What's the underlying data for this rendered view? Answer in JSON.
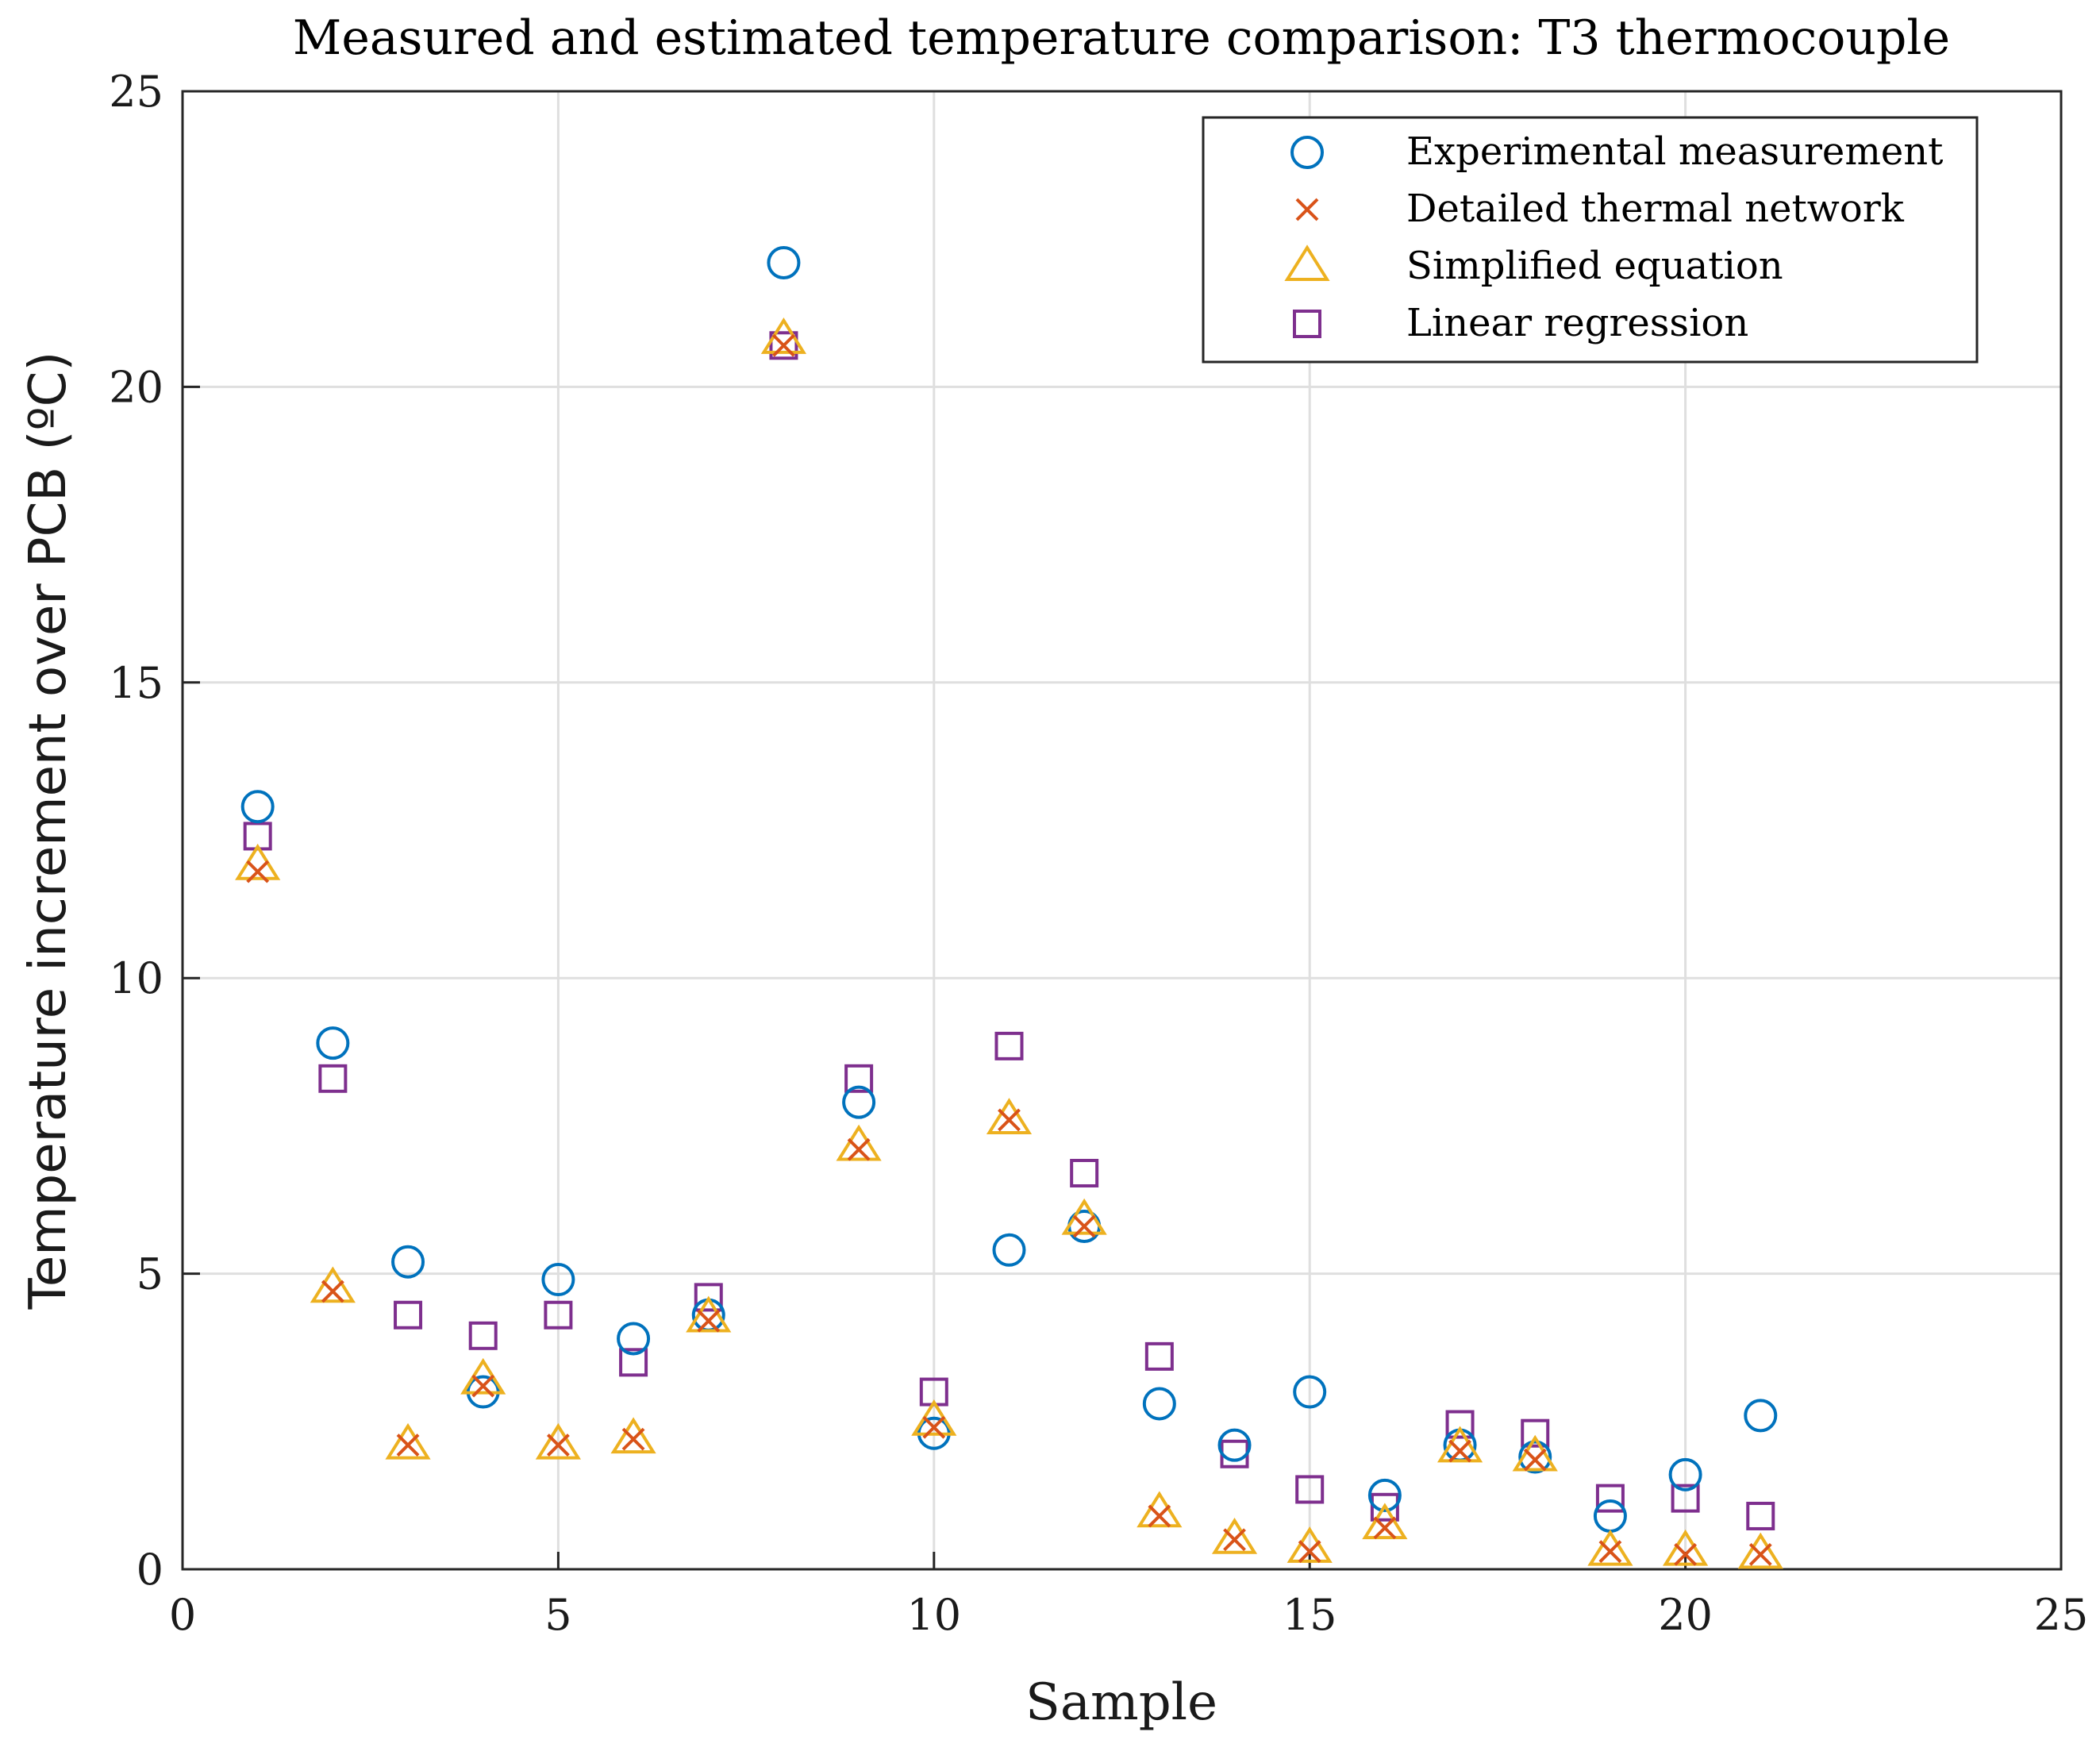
{
  "chart_data": {
    "type": "scatter",
    "title": "Measured and estimated temperature comparison: T3 thermocouple",
    "xlabel": "Sample",
    "ylabel": "Temperature increment over PCB (ºC)",
    "xlim": [
      0,
      25
    ],
    "ylim": [
      0,
      25
    ],
    "xticks": [
      0,
      5,
      10,
      15,
      20,
      25
    ],
    "yticks": [
      0,
      5,
      10,
      15,
      20,
      25
    ],
    "grid": true,
    "legend_position": "top-right",
    "x": [
      1,
      2,
      3,
      4,
      5,
      6,
      7,
      8,
      9,
      10,
      11,
      12,
      13,
      14,
      15,
      16,
      17,
      18,
      19,
      20,
      21
    ],
    "series": [
      {
        "name": "Experimental measurement",
        "marker": "circle",
        "color": "#0072BD",
        "values": [
          12.9,
          8.9,
          5.2,
          3.0,
          4.9,
          3.9,
          4.3,
          22.1,
          7.9,
          2.3,
          5.4,
          5.8,
          2.8,
          2.1,
          3.0,
          1.25,
          2.1,
          1.9,
          0.9,
          1.6,
          2.6
        ]
      },
      {
        "name": "Detailed thermal network",
        "marker": "x",
        "color": "#D95319",
        "values": [
          11.8,
          4.7,
          2.1,
          3.1,
          2.1,
          2.2,
          4.2,
          20.7,
          7.1,
          2.4,
          7.6,
          5.8,
          0.9,
          0.5,
          0.3,
          0.7,
          2.0,
          1.85,
          0.3,
          0.25,
          0.25
        ]
      },
      {
        "name": "Simplified equation",
        "marker": "triangle",
        "color": "#EDB120",
        "values": [
          11.9,
          4.75,
          2.1,
          3.2,
          2.1,
          2.2,
          4.25,
          20.8,
          7.15,
          2.5,
          7.6,
          5.9,
          0.95,
          0.5,
          0.35,
          0.75,
          2.05,
          1.9,
          0.3,
          0.3,
          0.25
        ]
      },
      {
        "name": "Linear regression",
        "marker": "square",
        "color": "#7E2F8E",
        "values": [
          12.4,
          8.3,
          4.3,
          3.95,
          4.3,
          3.5,
          4.6,
          20.7,
          8.3,
          3.0,
          8.85,
          6.7,
          3.6,
          1.95,
          1.35,
          1.05,
          2.45,
          2.3,
          1.2,
          1.2,
          0.9
        ]
      }
    ]
  }
}
